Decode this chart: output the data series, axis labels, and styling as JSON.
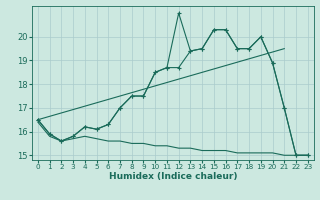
{
  "title": "",
  "xlabel": "Humidex (Indice chaleur)",
  "background_color": "#cce8e0",
  "grid_color": "#aacccc",
  "line_color": "#1a6b5a",
  "xlim": [
    -0.5,
    23.5
  ],
  "ylim": [
    14.8,
    21.3
  ],
  "yticks": [
    15,
    16,
    17,
    18,
    19,
    20
  ],
  "xticks": [
    0,
    1,
    2,
    3,
    4,
    5,
    6,
    7,
    8,
    9,
    10,
    11,
    12,
    13,
    14,
    15,
    16,
    17,
    18,
    19,
    20,
    21,
    22,
    23
  ],
  "series_spike_x": [
    0,
    1,
    2,
    3,
    4,
    5,
    6,
    7,
    8,
    9,
    10,
    11,
    12,
    13,
    14,
    15,
    16,
    17,
    18,
    19,
    20,
    21,
    22,
    23
  ],
  "series_spike_y": [
    16.5,
    15.9,
    15.6,
    15.8,
    16.2,
    16.1,
    16.3,
    17.0,
    17.5,
    17.5,
    18.5,
    18.7,
    21.0,
    19.4,
    19.5,
    20.3,
    20.3,
    19.5,
    19.5,
    20.0,
    18.9,
    17.0,
    15.0,
    15.0
  ],
  "series_smooth_x": [
    0,
    1,
    2,
    3,
    4,
    5,
    6,
    7,
    8,
    9,
    10,
    11,
    12,
    13,
    14,
    15,
    16,
    17,
    18,
    19,
    20,
    21,
    22,
    23
  ],
  "series_smooth_y": [
    16.5,
    15.9,
    15.6,
    15.8,
    16.2,
    16.1,
    16.3,
    17.0,
    17.5,
    17.5,
    18.5,
    18.7,
    18.7,
    19.4,
    19.5,
    20.3,
    20.3,
    19.5,
    19.5,
    20.0,
    18.9,
    17.0,
    15.0,
    15.0
  ],
  "series_dew_x": [
    0,
    1,
    2,
    3,
    4,
    5,
    6,
    7,
    8,
    9,
    10,
    11,
    12,
    13,
    14,
    15,
    16,
    17,
    18,
    19,
    20,
    21,
    22,
    23
  ],
  "series_dew_y": [
    16.4,
    15.8,
    15.6,
    15.7,
    15.8,
    15.7,
    15.6,
    15.6,
    15.5,
    15.5,
    15.4,
    15.4,
    15.3,
    15.3,
    15.2,
    15.2,
    15.2,
    15.1,
    15.1,
    15.1,
    15.1,
    15.0,
    15.0,
    15.0
  ],
  "series_trend_x": [
    0,
    21
  ],
  "series_trend_y": [
    16.5,
    19.5
  ]
}
